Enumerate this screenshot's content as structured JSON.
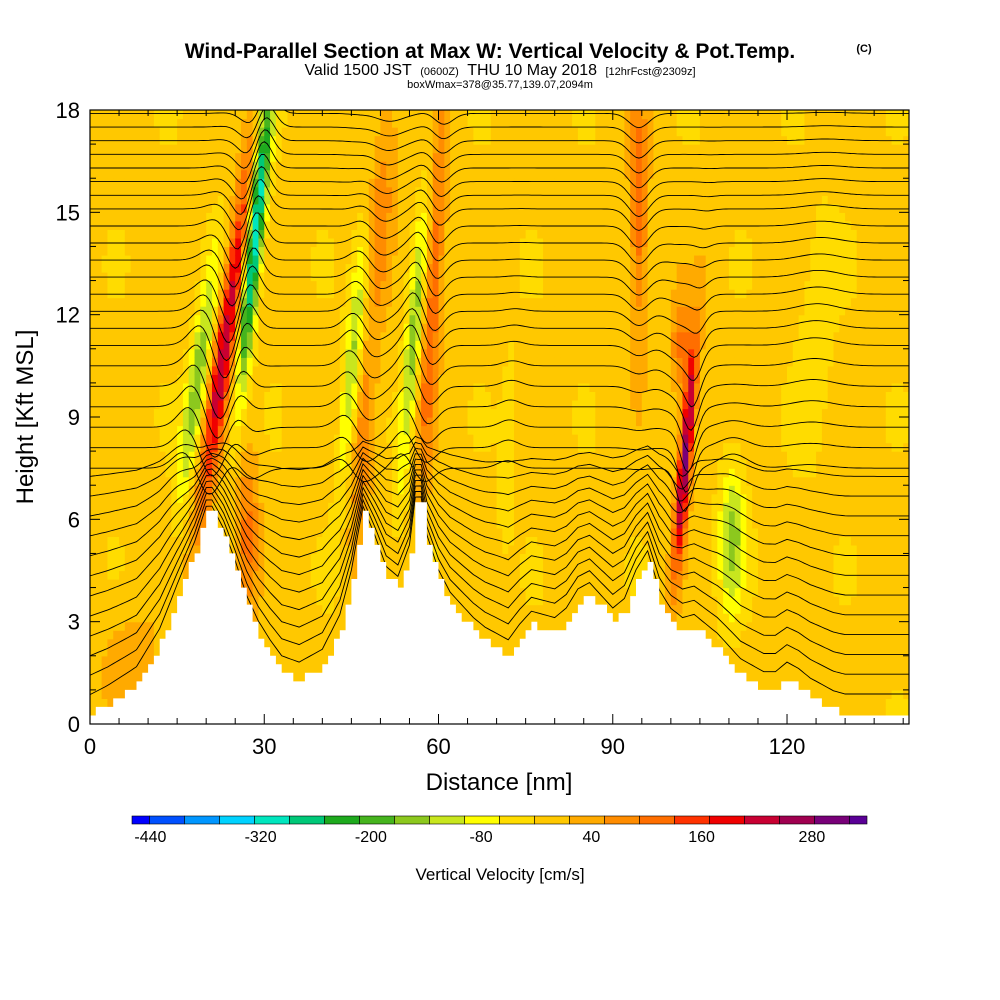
{
  "chart_data": {
    "type": "heatmap",
    "title": "Wind-Parallel Section at Max W: Vertical Velocity & Pot.Temp.",
    "title_mark": "(C)",
    "subtitle": {
      "part1": "Valid 1500 JST",
      "part2": "(0600Z)",
      "part3": "THU 10 May 2018",
      "part4": "[12hrFcst@2309z]"
    },
    "subtitle2": "boxWmax=378@35.77,139.07,2094m",
    "xlabel": "Distance [nm]",
    "ylabel": "Height [Kft MSL]",
    "xlim": [
      0,
      141
    ],
    "ylim": [
      0,
      18
    ],
    "x_ticks": [
      0,
      30,
      60,
      90,
      120
    ],
    "y_ticks": [
      0,
      3,
      6,
      9,
      12,
      15,
      18
    ],
    "colorbar": {
      "label": "Vertical Velocity [cm/s]",
      "min": -460,
      "max": 340,
      "step": 40,
      "tick_labels": [
        -440,
        -320,
        -200,
        -80,
        40,
        160,
        280
      ],
      "colors": [
        "#0000ff",
        "#0050ff",
        "#0096ff",
        "#00d2ff",
        "#00e6be",
        "#00c878",
        "#1eaa1e",
        "#46b41e",
        "#8cc81e",
        "#c8e61e",
        "#ffff00",
        "#ffdc00",
        "#ffc800",
        "#ffaa00",
        "#ff8c00",
        "#ff6e00",
        "#ff3200",
        "#f00000",
        "#c80032",
        "#a00050",
        "#780078",
        "#5a0096"
      ]
    },
    "terrain": {
      "x": [
        0,
        3,
        8,
        12,
        15,
        18,
        20,
        21,
        23,
        25,
        27,
        29,
        31,
        33,
        36,
        40,
        43,
        45,
        47,
        49,
        51,
        53,
        55,
        56,
        57,
        58,
        60,
        62,
        64,
        66,
        68,
        70,
        72,
        74,
        76,
        78,
        80,
        82,
        84,
        86,
        88,
        90,
        92,
        94,
        96,
        98,
        100,
        102,
        104,
        106,
        108,
        110,
        112,
        114,
        116,
        118,
        120,
        122,
        124,
        126,
        128,
        130,
        141
      ],
      "height": [
        0.3,
        0.6,
        1.2,
        2.4,
        3.8,
        5.1,
        6.2,
        6.2,
        5.5,
        4.5,
        3.4,
        2.6,
        2.0,
        1.5,
        1.3,
        1.7,
        2.8,
        4.2,
        6.2,
        5.3,
        4.3,
        4.0,
        5.0,
        6.5,
        6.5,
        5.3,
        4.2,
        3.5,
        3.1,
        2.7,
        2.4,
        2.2,
        2.0,
        2.5,
        2.9,
        2.8,
        2.7,
        3.0,
        3.6,
        3.8,
        3.4,
        3.0,
        3.3,
        4.2,
        4.8,
        3.6,
        3.0,
        2.7,
        2.8,
        2.5,
        2.2,
        1.8,
        1.4,
        1.2,
        1.0,
        1.0,
        1.3,
        1.1,
        0.8,
        0.6,
        0.4,
        0.3,
        0.3
      ]
    },
    "updrafts": [
      {
        "x": 23.5,
        "z": 11.5,
        "dx": 1.8,
        "dz": 5.5,
        "slope": 0.8,
        "w": 260
      },
      {
        "x": 27,
        "z": 5.5,
        "dx": 2.0,
        "dz": 2.5,
        "slope": 0.1,
        "w": 120
      },
      {
        "x": 47,
        "z": 8.5,
        "dx": 2.0,
        "dz": 3.5,
        "slope": 0.4,
        "w": 110
      },
      {
        "x": 50,
        "z": 15.5,
        "dx": 2.5,
        "dz": 3.0,
        "slope": 0.3,
        "w": 90
      },
      {
        "x": 59,
        "z": 12.5,
        "dx": 1.5,
        "dz": 5.5,
        "slope": 0.3,
        "w": 150
      },
      {
        "x": 94.5,
        "z": 15.0,
        "dx": 1.5,
        "dz": 3.5,
        "slope": 0.0,
        "w": 140
      },
      {
        "x": 102.5,
        "z": 7.8,
        "dx": 1.1,
        "dz": 3.2,
        "slope": 0.5,
        "w": 330
      },
      {
        "x": 102,
        "z": 11.0,
        "dx": 2.0,
        "dz": 1.5,
        "slope": 0.0,
        "w": 120
      },
      {
        "x": 7,
        "z": 2.0,
        "dx": 5.0,
        "dz": 1.5,
        "slope": 0.0,
        "w": 50
      }
    ],
    "downdrafts": [
      {
        "x": 28.5,
        "z": 14.5,
        "dx": 1.4,
        "dz": 4.5,
        "slope": 0.55,
        "w": -360
      },
      {
        "x": 18.5,
        "z": 10.0,
        "dx": 1.8,
        "dz": 3.5,
        "slope": 0.8,
        "w": -170
      },
      {
        "x": 45.5,
        "z": 11.0,
        "dx": 1.6,
        "dz": 4.0,
        "slope": 0.5,
        "w": -150
      },
      {
        "x": 55.5,
        "z": 11.0,
        "dx": 1.4,
        "dz": 4.0,
        "slope": 0.5,
        "w": -160
      },
      {
        "x": 110.5,
        "z": 5.5,
        "dx": 2.2,
        "dz": 2.2,
        "slope": 0.1,
        "w": -150
      },
      {
        "x": 125,
        "z": 11.5,
        "dx": 3.0,
        "dz": 3.5,
        "slope": 0.3,
        "w": -50
      },
      {
        "x": 72,
        "z": 8.0,
        "dx": 1.5,
        "dz": 3.0,
        "slope": 0.3,
        "w": -50
      }
    ],
    "isentrope_levels": [
      0.3,
      0.9,
      1.5,
      2.1,
      2.7,
      3.3,
      3.9,
      4.5,
      5.1,
      5.7,
      6.3,
      6.9,
      7.5,
      8.1,
      8.7,
      9.3,
      9.9,
      10.5,
      11.1,
      11.6,
      12.1,
      12.6,
      13.1,
      13.6,
      14.1,
      14.6,
      15.1,
      15.5,
      15.9,
      16.3,
      16.7,
      17.1,
      17.5,
      17.9
    ]
  }
}
